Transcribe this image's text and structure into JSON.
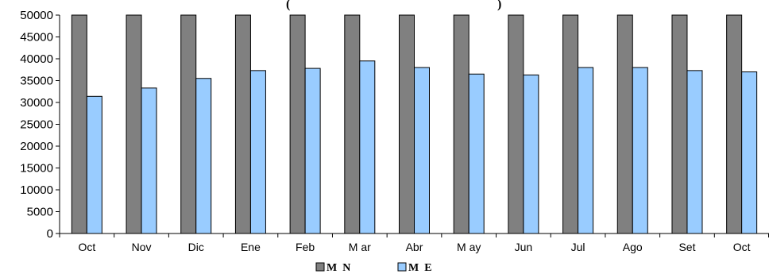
{
  "chart_data": {
    "type": "bar",
    "title": "(",
    "title_suffix": ")",
    "categories": [
      "Oct",
      "Nov",
      "Dic",
      "Ene",
      "Feb",
      "M ar",
      "Abr",
      "M ay",
      "Jun",
      "Jul",
      "Ago",
      "Set",
      "Oct"
    ],
    "series": [
      {
        "name": "M  N",
        "color": "#808080",
        "values": [
          50000,
          50000,
          50000,
          50000,
          50000,
          50000,
          50000,
          50000,
          50000,
          50000,
          50000,
          50000,
          50000
        ]
      },
      {
        "name": "M  E",
        "color": "#99CCFF",
        "values": [
          31400,
          33300,
          35500,
          37300,
          37800,
          39500,
          38000,
          36500,
          36300,
          38000,
          38000,
          37300,
          37000
        ]
      }
    ],
    "xlabel": "",
    "ylabel": "",
    "ylim": [
      0,
      50000
    ],
    "yticks": [
      "0",
      "5000",
      "10000",
      "15000",
      "20000",
      "25000",
      "30000",
      "35000",
      "40000",
      "45000",
      "50000"
    ],
    "grid": false,
    "legend_position": "bottom"
  }
}
